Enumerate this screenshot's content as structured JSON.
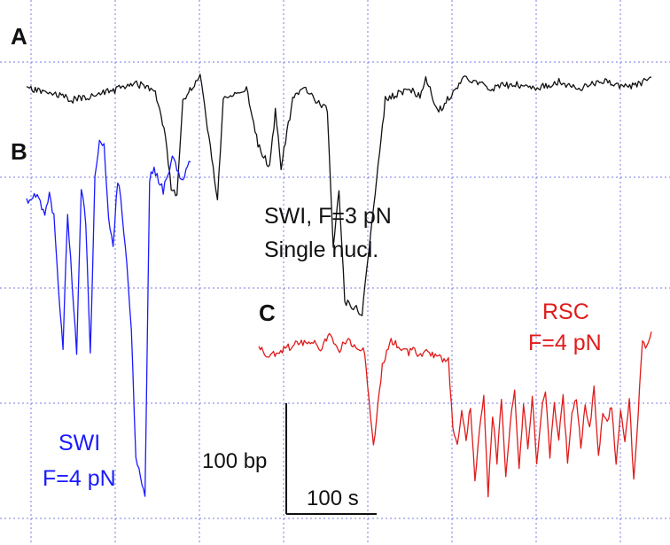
{
  "chart_data": [
    {
      "panel": "A",
      "type": "line",
      "colors": {
        "trace": "#111111"
      },
      "annotation": [
        "SWI, F=3 pN",
        "Single nucl."
      ],
      "x": [
        0,
        20,
        40,
        60,
        80,
        95,
        110,
        120,
        125,
        130,
        135,
        150,
        160,
        165,
        170,
        190,
        200,
        210,
        215,
        220,
        230,
        240,
        250,
        260,
        265,
        270,
        275,
        290,
        310,
        330,
        340,
        345,
        355,
        360,
        370,
        380,
        400,
        420,
        440,
        460,
        480,
        500,
        520,
        540
      ],
      "y": [
        0,
        -2,
        -5,
        -3,
        0,
        2,
        0,
        -20,
        -45,
        -48,
        -5,
        5,
        -30,
        -50,
        -5,
        0,
        -25,
        -35,
        -10,
        -35,
        -5,
        0,
        -5,
        -10,
        -70,
        -45,
        -95,
        -100,
        -5,
        0,
        -3,
        5,
        -10,
        -8,
        0,
        5,
        0,
        2,
        0,
        3,
        0,
        4,
        0,
        5
      ],
      "xlim": [
        0,
        540
      ],
      "ylim": [
        -110,
        15
      ]
    },
    {
      "panel": "B",
      "type": "line",
      "colors": {
        "trace": "#1a1aff"
      },
      "annotation": [
        "SWI",
        "F=4 pN"
      ],
      "x": [
        0,
        10,
        20,
        25,
        30,
        35,
        40,
        45,
        50,
        55,
        60,
        65,
        70,
        75,
        80,
        85,
        90,
        95,
        100,
        105,
        110,
        115,
        120,
        130,
        135,
        140,
        150,
        160,
        170,
        180
      ],
      "y": [
        0,
        3,
        -5,
        2,
        -8,
        -40,
        -70,
        -5,
        -40,
        -70,
        5,
        -10,
        -70,
        10,
        30,
        25,
        -10,
        -20,
        10,
        -5,
        -30,
        -60,
        -120,
        -140,
        10,
        15,
        5,
        20,
        10,
        18
      ],
      "xlim": [
        0,
        180
      ],
      "ylim": [
        -150,
        40
      ]
    },
    {
      "panel": "C",
      "type": "line",
      "colors": {
        "trace": "#e01b1b"
      },
      "annotation": [
        "RSC",
        "F=4 pN"
      ],
      "x": [
        0,
        10,
        20,
        40,
        60,
        70,
        80,
        90,
        100,
        110,
        120,
        130,
        140,
        150,
        160,
        170,
        175,
        180,
        190,
        200,
        215,
        220,
        225,
        230,
        235,
        240,
        245,
        250,
        255,
        260,
        265,
        270,
        275,
        280,
        285,
        290,
        295,
        300,
        305,
        310,
        315,
        320,
        325,
        330,
        335,
        340,
        345,
        350,
        355,
        360,
        365,
        370,
        375,
        380,
        385,
        390,
        395,
        400,
        405,
        410,
        415,
        420,
        425,
        430,
        435,
        440,
        445
      ],
      "y": [
        0,
        -5,
        -3,
        2,
        5,
        0,
        8,
        -2,
        5,
        0,
        -2,
        -60,
        -10,
        5,
        0,
        -3,
        0,
        -5,
        -2,
        -5,
        -8,
        -50,
        -60,
        -40,
        -55,
        -35,
        -80,
        -50,
        -30,
        -90,
        -40,
        -70,
        -30,
        -80,
        -45,
        -25,
        -75,
        -35,
        -60,
        -30,
        -70,
        -40,
        -25,
        -65,
        -35,
        -55,
        -30,
        -70,
        -40,
        -30,
        -60,
        -35,
        -50,
        -25,
        -65,
        -40,
        -45,
        -35,
        -70,
        -40,
        -55,
        -30,
        -80,
        -40,
        5,
        0,
        10
      ],
      "xlim": [
        0,
        445
      ],
      "ylim": [
        -100,
        15
      ]
    }
  ],
  "panels": {
    "A": "A",
    "B": "B",
    "C": "C"
  },
  "annotations": {
    "a_line1": "SWI, F=3 pN",
    "a_line2": "Single nucl.",
    "b_line1": "SWI",
    "b_line2": "F=4 pN",
    "c_line1": "RSC",
    "c_line2": "F=4 pN"
  },
  "scalebar": {
    "y_label": "100 bp",
    "x_label": "100 s"
  },
  "colors": {
    "grid": "#7a7ae8",
    "black": "#111111",
    "blue": "#1a1aff",
    "red": "#e01b1b"
  }
}
